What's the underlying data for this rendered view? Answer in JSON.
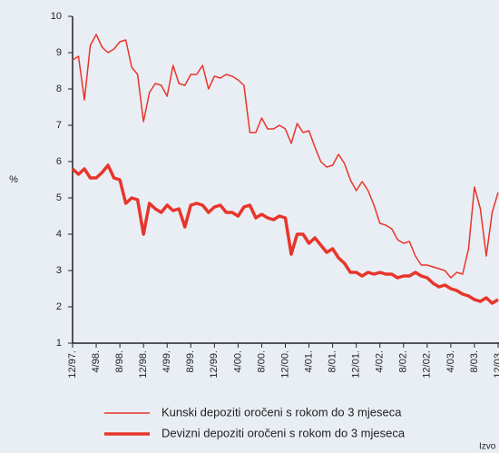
{
  "chart_data": {
    "type": "line",
    "ylabel": "%",
    "source_note": "Izvo",
    "categories": [
      "12/97.",
      null,
      null,
      null,
      "4/98.",
      null,
      null,
      null,
      "8/98.",
      null,
      null,
      null,
      "12/98.",
      null,
      null,
      null,
      "4/99.",
      null,
      null,
      null,
      "8/99.",
      null,
      null,
      null,
      "12/99.",
      null,
      null,
      null,
      "4/00.",
      null,
      null,
      null,
      "8/00.",
      null,
      null,
      null,
      "12/00.",
      null,
      null,
      null,
      "4/01.",
      null,
      null,
      null,
      "8/01.",
      null,
      null,
      null,
      "12/01.",
      null,
      null,
      null,
      "4/02.",
      null,
      null,
      null,
      "8/02.",
      null,
      null,
      null,
      "12/02.",
      null,
      null,
      null,
      "4/03.",
      null,
      null,
      null,
      "8/03.",
      null,
      null,
      null,
      "12/03."
    ],
    "series": [
      {
        "name": "Kunski depoziti oročeni s rokom do 3 mjeseca",
        "color": "#e8352b",
        "width": 1.5,
        "values": [
          8.8,
          8.9,
          7.7,
          9.2,
          9.5,
          9.15,
          9.0,
          9.1,
          9.3,
          9.35,
          8.6,
          8.4,
          7.1,
          7.9,
          8.15,
          8.1,
          7.8,
          8.65,
          8.15,
          8.1,
          8.4,
          8.4,
          8.65,
          8.0,
          8.35,
          8.3,
          8.4,
          8.35,
          8.25,
          8.1,
          6.8,
          6.8,
          7.2,
          6.9,
          6.9,
          7.0,
          6.9,
          6.5,
          7.05,
          6.8,
          6.85,
          6.4,
          6.0,
          5.85,
          5.9,
          6.2,
          5.95,
          5.5,
          5.2,
          5.45,
          5.2,
          4.8,
          4.3,
          4.25,
          4.15,
          3.85,
          3.75,
          3.8,
          3.4,
          3.15,
          3.15,
          3.1,
          3.05,
          3.0,
          2.8,
          2.95,
          2.9,
          3.6,
          5.3,
          4.7,
          3.4,
          4.6,
          5.15
        ]
      },
      {
        "name": "Devizni depoziti oročeni s rokom do 3 mjeseca",
        "color": "#e8352b",
        "width": 3.5,
        "values": [
          5.8,
          5.65,
          5.8,
          5.55,
          5.55,
          5.7,
          5.9,
          5.55,
          5.5,
          4.85,
          5.0,
          4.95,
          4.0,
          4.85,
          4.7,
          4.6,
          4.8,
          4.65,
          4.7,
          4.2,
          4.8,
          4.85,
          4.8,
          4.6,
          4.75,
          4.8,
          4.6,
          4.6,
          4.5,
          4.75,
          4.8,
          4.45,
          4.55,
          4.45,
          4.4,
          4.5,
          4.45,
          3.45,
          4.0,
          4.0,
          3.75,
          3.9,
          3.7,
          3.5,
          3.6,
          3.35,
          3.2,
          2.95,
          2.95,
          2.85,
          2.95,
          2.9,
          2.95,
          2.9,
          2.9,
          2.8,
          2.85,
          2.85,
          2.95,
          2.85,
          2.8,
          2.65,
          2.55,
          2.6,
          2.5,
          2.45,
          2.35,
          2.3,
          2.2,
          2.15,
          2.25,
          2.1,
          2.2
        ]
      }
    ],
    "ylim": [
      1,
      10
    ],
    "yticks": [
      1,
      2,
      3,
      4,
      5,
      6,
      7,
      8,
      9,
      10
    ],
    "grid": false
  }
}
